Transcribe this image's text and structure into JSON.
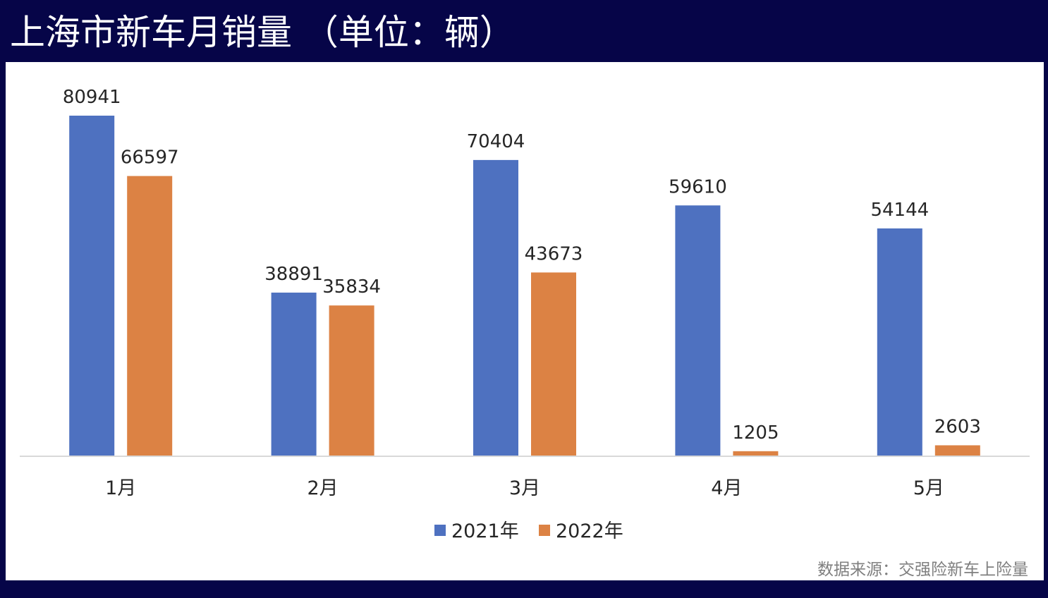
{
  "title": "上海市新车月销量 （单位：辆）",
  "source": "数据来源：交强险新车上险量",
  "chart_data": {
    "type": "bar",
    "title": "上海市新车月销量 （单位：辆）",
    "categories": [
      "1月",
      "2月",
      "3月",
      "4月",
      "5月"
    ],
    "series": [
      {
        "name": "2021年",
        "values": [
          80941,
          38891,
          70404,
          59610,
          54144
        ],
        "color": "#4e71c0"
      },
      {
        "name": "2022年",
        "values": [
          66597,
          35834,
          43673,
          1205,
          2603
        ],
        "color": "#dc8244"
      }
    ],
    "xlabel": "",
    "ylabel": "",
    "ylim": [
      0,
      80941
    ],
    "grid": false,
    "legend": "bottom",
    "data_labels": true
  }
}
